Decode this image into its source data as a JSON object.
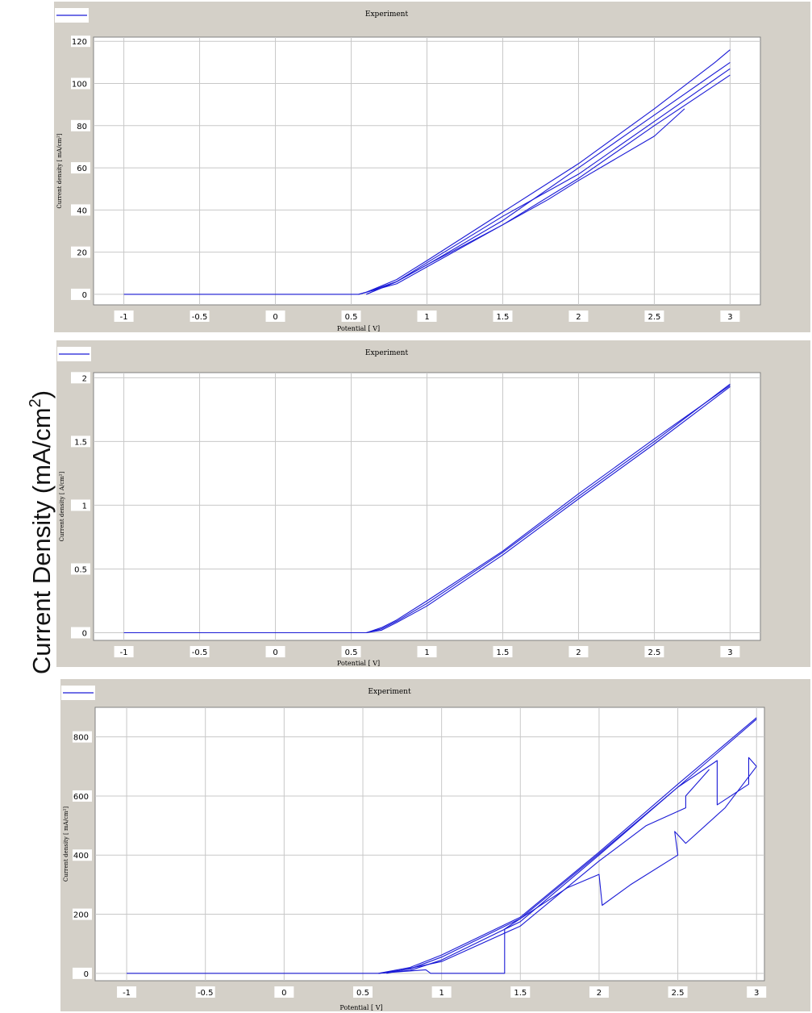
{
  "figure": {
    "shared_ylabel": "Current Density (mA/cm",
    "shared_ylabel_sup": "2",
    "shared_ylabel_close": ")"
  },
  "chart_data": [
    {
      "type": "line",
      "title": "Experiment",
      "xlabel": "Potential [ V]",
      "ylabel": "Current density [ mA/cm²]",
      "xlim": [
        -1.2,
        3.2
      ],
      "ylim": [
        -5,
        122
      ],
      "xticks": [
        -1,
        -0.5,
        0,
        0.5,
        1,
        1.5,
        2,
        2.5,
        3
      ],
      "xtick_labels": [
        "-1",
        "-0.5",
        "0",
        "0.5",
        "1",
        "1.5",
        "2",
        "2.5",
        "3"
      ],
      "yticks": [
        0,
        20,
        40,
        60,
        80,
        100,
        120
      ],
      "ytick_labels": [
        "0",
        "20",
        "40",
        "60",
        "80",
        "100",
        "120"
      ],
      "grid": true,
      "color": "#1a1ad6",
      "series": [
        {
          "x": [
            -1,
            0.55,
            0.6,
            0.8,
            1.0,
            1.5,
            2.0,
            2.5,
            2.9,
            3.0
          ],
          "y": [
            0,
            0,
            1,
            7,
            16,
            39,
            62,
            88,
            110,
            116
          ]
        },
        {
          "x": [
            3.0,
            2.5,
            2.0,
            1.5,
            1.0,
            0.8,
            0.6,
            0.55
          ],
          "y": [
            110,
            85,
            60,
            35,
            14,
            6,
            1,
            0
          ]
        },
        {
          "x": [
            0.55,
            0.6,
            0.8,
            1.0,
            1.5,
            2.0,
            2.5,
            3.0
          ],
          "y": [
            0,
            1,
            5,
            13,
            33,
            55,
            80,
            104
          ]
        },
        {
          "x": [
            3.0,
            2.7,
            2.5,
            2.0,
            1.5,
            1.0,
            0.8,
            0.6
          ],
          "y": [
            107,
            92,
            82,
            57,
            37,
            15,
            6,
            0
          ]
        },
        {
          "x": [
            0.6,
            0.8,
            1.0,
            1.5,
            1.8,
            2.0,
            2.5,
            2.7
          ],
          "y": [
            0,
            6,
            14,
            33,
            45,
            54,
            75,
            88
          ]
        }
      ]
    },
    {
      "type": "line",
      "title": "Experiment",
      "xlabel": "Potential [ V]",
      "ylabel": "Current density [ A/cm²]",
      "xlim": [
        -1.2,
        3.2
      ],
      "ylim": [
        -0.06,
        2.04
      ],
      "xticks": [
        -1,
        -0.5,
        0,
        0.5,
        1,
        1.5,
        2,
        2.5,
        3
      ],
      "xtick_labels": [
        "-1",
        "-0.5",
        "0",
        "0.5",
        "1",
        "1.5",
        "2",
        "2.5",
        "3"
      ],
      "yticks": [
        0,
        0.5,
        1,
        1.5,
        2
      ],
      "ytick_labels": [
        "0",
        "0.5",
        "1",
        "1.5",
        "2"
      ],
      "grid": true,
      "color": "#1a1ad6",
      "series": [
        {
          "x": [
            -1,
            0.6,
            0.7,
            0.8,
            1.0,
            1.5,
            2.0,
            2.5,
            3.0
          ],
          "y": [
            0,
            0,
            0.03,
            0.09,
            0.23,
            0.63,
            1.07,
            1.5,
            1.95
          ]
        },
        {
          "x": [
            3.0,
            2.5,
            2.0,
            1.5,
            1.0,
            0.8,
            0.7,
            0.6
          ],
          "y": [
            1.93,
            1.48,
            1.05,
            0.61,
            0.21,
            0.08,
            0.02,
            0
          ]
        },
        {
          "x": [
            0.6,
            0.7,
            0.8,
            1.0,
            1.5,
            2.0,
            2.5,
            3.0
          ],
          "y": [
            0,
            0.04,
            0.1,
            0.25,
            0.64,
            1.09,
            1.52,
            1.94
          ]
        }
      ]
    },
    {
      "type": "line",
      "title": "Experiment",
      "xlabel": "Potential [ V]",
      "ylabel": "Current density [ mA/cm²]",
      "xlim": [
        -1.2,
        3.05
      ],
      "ylim": [
        -25,
        900
      ],
      "xticks": [
        -1,
        -0.5,
        0,
        0.5,
        1,
        1.5,
        2,
        2.5,
        3
      ],
      "xtick_labels": [
        "-1",
        "-0.5",
        "0",
        "0.5",
        "1",
        "1.5",
        "2",
        "2.5",
        "3"
      ],
      "yticks": [
        0,
        200,
        400,
        600,
        800
      ],
      "ytick_labels": [
        "0",
        "200",
        "400",
        "600",
        "800"
      ],
      "grid": true,
      "color": "#1a1ad6",
      "series": [
        {
          "x": [
            -1,
            0.6,
            0.8,
            1.0,
            1.5,
            2.0,
            2.5,
            3.0
          ],
          "y": [
            0,
            0,
            20,
            62,
            190,
            410,
            640,
            865
          ]
        },
        {
          "x": [
            3.0,
            2.5,
            2.0,
            1.5,
            1.0,
            0.8,
            0.6
          ],
          "y": [
            860,
            630,
            405,
            185,
            55,
            15,
            0
          ]
        },
        {
          "x": [
            0.6,
            0.8,
            1.0,
            1.5,
            2.0,
            2.5,
            2.75,
            2.75,
            2.95,
            2.95,
            3.0
          ],
          "y": [
            0,
            10,
            45,
            175,
            400,
            630,
            720,
            570,
            640,
            730,
            700
          ]
        },
        {
          "x": [
            0.65,
            1.0,
            1.5,
            2.0,
            2.3,
            2.55,
            2.55,
            2.7
          ],
          "y": [
            0,
            40,
            160,
            380,
            500,
            560,
            600,
            690
          ]
        },
        {
          "x": [
            0.6,
            0.9,
            0.93,
            1.4,
            1.4,
            1.6,
            1.8,
            2.0,
            2.02,
            2.2,
            2.5,
            2.48,
            2.55,
            2.8,
            3.0
          ],
          "y": [
            0,
            12,
            0,
            0,
            150,
            220,
            290,
            335,
            230,
            300,
            400,
            480,
            440,
            560,
            700
          ]
        }
      ]
    }
  ]
}
